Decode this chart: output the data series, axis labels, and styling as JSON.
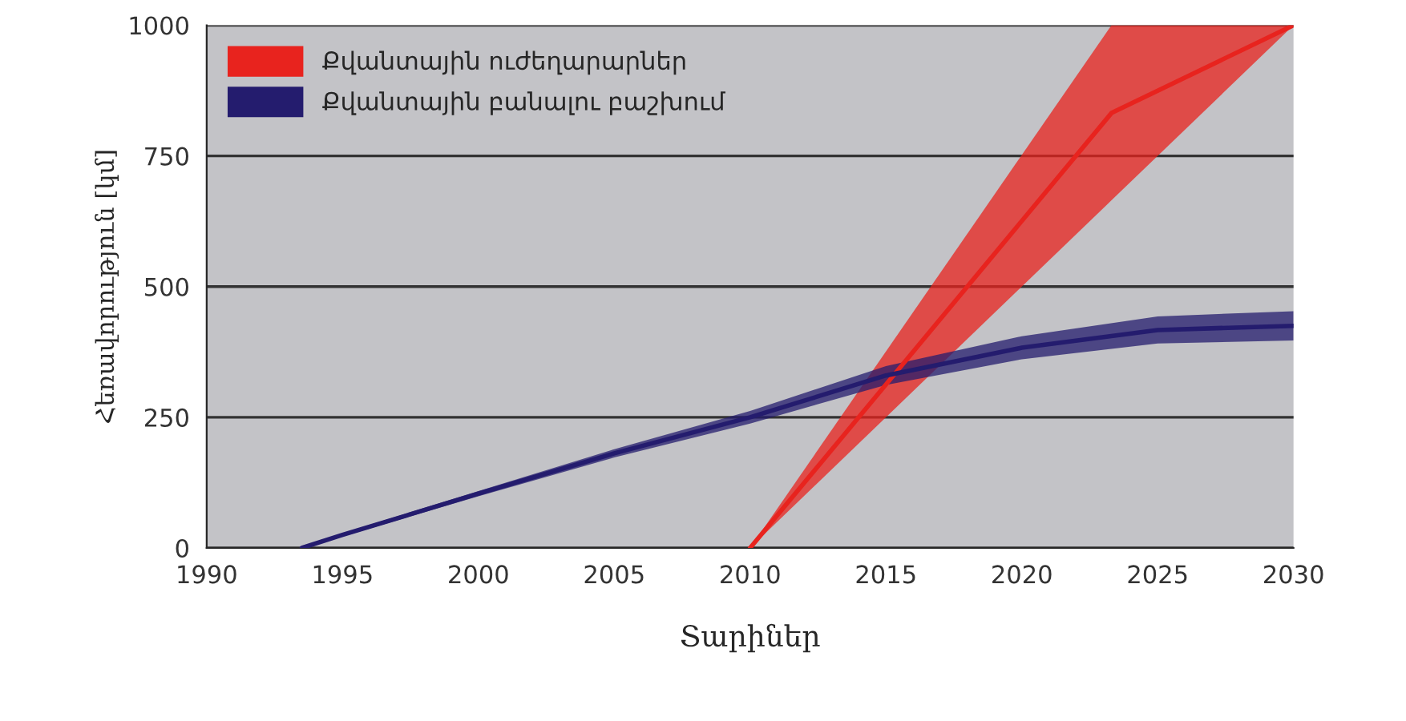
{
  "chart_data": {
    "type": "line",
    "xlabel": "Տարիներ",
    "ylabel": "Հեռավորություն [կմ]",
    "xlim": [
      1990,
      2030
    ],
    "xticks": [
      1990,
      1995,
      2000,
      2005,
      2010,
      2015,
      2020,
      2025,
      2030
    ],
    "ylim": [
      0,
      1000
    ],
    "yticks": [
      0,
      250,
      500,
      750,
      1000
    ],
    "grid": "y",
    "legend": "top left",
    "series": [
      {
        "name": "Քվանտային ուժեղարարներ",
        "color": "#e8231e",
        "x": [
          2010,
          2023.3,
          2030
        ],
        "values": [
          0,
          832,
          1000
        ],
        "lower": [
          0,
          665,
          1000
        ],
        "upper": [
          0,
          1000,
          1000
        ]
      },
      {
        "name": "Քվանտային բանալու բաշխում",
        "color": "#241c6e",
        "x": [
          1993.5,
          1995,
          2000,
          2005,
          2010,
          2015,
          2020,
          2025,
          2030
        ],
        "values": [
          0,
          25,
          104,
          181,
          250,
          330,
          383,
          417,
          425
        ],
        "lower": [
          0,
          22,
          99,
          173,
          238,
          312,
          361,
          391,
          397
        ],
        "upper": [
          0,
          28,
          109,
          189,
          262,
          348,
          405,
          443,
          453
        ]
      }
    ]
  }
}
